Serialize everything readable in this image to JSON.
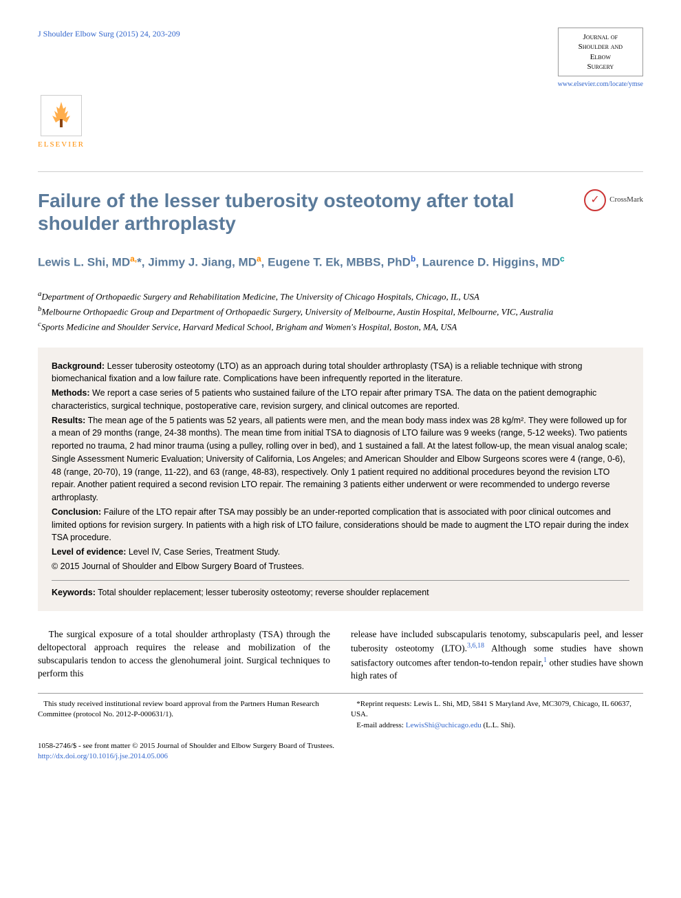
{
  "header": {
    "citation": "J Shoulder Elbow Surg (2015) 24, 203-209",
    "journal_name_l1": "Journal of",
    "journal_name_l2": "Shoulder and",
    "journal_name_l3": "Elbow",
    "journal_name_l4": "Surgery",
    "journal_url": "www.elsevier.com/locate/ymse",
    "publisher": "ELSEVIER"
  },
  "crossmark": {
    "label": "CrossMark",
    "glyph": "✓"
  },
  "title": "Failure of the lesser tuberosity osteotomy after total shoulder arthroplasty",
  "authors_html": "Lewis L. Shi, MD<sup>a,</sup>*, Jimmy J. Jiang, MD<sup>a</sup>, Eugene T. Ek, MBBS, PhD<sup class=\"sup-b\">b</sup>, Laurence D. Higgins, MD<sup class=\"sup-c\">c</sup>",
  "affiliations": {
    "a": "Department of Orthopaedic Surgery and Rehabilitation Medicine, The University of Chicago Hospitals, Chicago, IL, USA",
    "b": "Melbourne Orthopaedic Group and Department of Orthopaedic Surgery, University of Melbourne, Austin Hospital, Melbourne, VIC, Australia",
    "c": "Sports Medicine and Shoulder Service, Harvard Medical School, Brigham and Women's Hospital, Boston, MA, USA"
  },
  "abstract": {
    "background_label": "Background:",
    "background": " Lesser tuberosity osteotomy (LTO) as an approach during total shoulder arthroplasty (TSA) is a reliable technique with strong biomechanical fixation and a low failure rate. Complications have been infrequently reported in the literature.",
    "methods_label": "Methods:",
    "methods": " We report a case series of 5 patients who sustained failure of the LTO repair after primary TSA. The data on the patient demographic characteristics, surgical technique, postoperative care, revision surgery, and clinical outcomes are reported.",
    "results_label": "Results:",
    "results": " The mean age of the 5 patients was 52 years, all patients were men, and the mean body mass index was 28 kg/m². They were followed up for a mean of 29 months (range, 24-38 months). The mean time from initial TSA to diagnosis of LTO failure was 9 weeks (range, 5-12 weeks). Two patients reported no trauma, 2 had minor trauma (using a pulley, rolling over in bed), and 1 sustained a fall. At the latest follow-up, the mean visual analog scale; Single Assessment Numeric Evaluation; University of California, Los Angeles; and American Shoulder and Elbow Surgeons scores were 4 (range, 0-6), 48 (range, 20-70), 19 (range, 11-22), and 63 (range, 48-83), respectively. Only 1 patient required no additional procedures beyond the revision LTO repair. Another patient required a second revision LTO repair. The remaining 3 patients either underwent or were recommended to undergo reverse arthroplasty.",
    "conclusion_label": "Conclusion:",
    "conclusion": " Failure of the LTO repair after TSA may possibly be an under-reported complication that is associated with poor clinical outcomes and limited options for revision surgery. In patients with a high risk of LTO failure, considerations should be made to augment the LTO repair during the index TSA procedure.",
    "evidence_label": "Level of evidence:",
    "evidence": " Level IV, Case Series, Treatment Study.",
    "copyright": "© 2015 Journal of Shoulder and Elbow Surgery Board of Trustees.",
    "keywords_label": "Keywords:",
    "keywords": " Total shoulder replacement; lesser tuberosity osteotomy; reverse shoulder replacement"
  },
  "body": {
    "col1": "The surgical exposure of a total shoulder arthroplasty (TSA) through the deltopectoral approach requires the release and mobilization of the subscapularis tendon to access the glenohumeral joint. Surgical techniques to perform this",
    "col2_a": "release have included subscapularis tenotomy, subscapularis peel, and lesser tuberosity osteotomy (LTO).",
    "col2_refs": "3,6,18",
    "col2_b": " Although some studies have shown satisfactory outcomes after tendon-to-tendon repair,",
    "col2_ref2": "1",
    "col2_c": " other studies have shown high rates of"
  },
  "footnotes": {
    "irb": "This study received institutional review board approval from the Partners Human Research Committee (protocol No. 2012-P-000631/1).",
    "reprint": "*Reprint requests: Lewis L. Shi, MD, 5841 S Maryland Ave, MC3079, Chicago, IL 60637, USA.",
    "email_label": "E-mail address: ",
    "email": "LewisShi@uchicago.edu",
    "email_suffix": " (L.L. Shi)."
  },
  "bottom": {
    "copyright_line": "1058-2746/$ - see front matter © 2015 Journal of Shoulder and Elbow Surgery Board of Trustees.",
    "doi": "http://dx.doi.org/10.1016/j.jse.2014.05.006"
  },
  "colors": {
    "heading": "#5a7a9a",
    "link": "#3366cc",
    "accent_orange": "#ff8c00",
    "abstract_bg": "#f4f0ec"
  }
}
